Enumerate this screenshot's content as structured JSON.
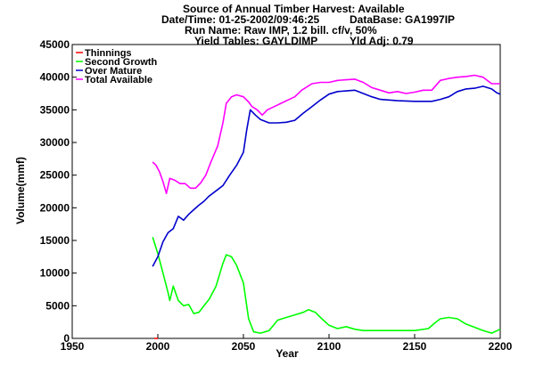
{
  "header": {
    "line1": "Source of Annual Timber Harvest: Available",
    "datetime": "Date/Time: 01-25-2002/09:46:25",
    "database": "DataBase: GA1997IP",
    "run_name": "Run Name: Raw IMP, 1.2 bill. cf/v, 50%",
    "yield_tables": "Yield Tables: GAYLDIMP",
    "yld_adj": "Yld Adj: 0.79"
  },
  "chart_data": {
    "type": "line",
    "xlabel": "Year",
    "ylabel": "Volume(mmf)",
    "xlim": [
      1950,
      2200
    ],
    "ylim": [
      0,
      45000
    ],
    "xticks": [
      1950,
      2000,
      2050,
      2100,
      2150,
      2200
    ],
    "yticks": [
      0,
      5000,
      10000,
      15000,
      20000,
      25000,
      30000,
      35000,
      40000,
      45000
    ],
    "grid": false,
    "legend_position": "top-left",
    "series": [
      {
        "name": "Thinnings",
        "color": "#ff0000",
        "points": [
          [
            1998,
            0
          ],
          [
            2000,
            0
          ]
        ]
      },
      {
        "name": "Second Growth",
        "color": "#00ff00",
        "points": [
          [
            1997,
            15500
          ],
          [
            2000,
            13000
          ],
          [
            2003,
            10000
          ],
          [
            2006,
            7000
          ],
          [
            2007,
            5800
          ],
          [
            2009,
            8000
          ],
          [
            2012,
            5800
          ],
          [
            2015,
            5000
          ],
          [
            2018,
            5200
          ],
          [
            2021,
            3800
          ],
          [
            2024,
            4000
          ],
          [
            2027,
            5000
          ],
          [
            2030,
            6000
          ],
          [
            2034,
            8000
          ],
          [
            2038,
            11500
          ],
          [
            2040,
            12800
          ],
          [
            2043,
            12500
          ],
          [
            2046,
            11200
          ],
          [
            2050,
            8500
          ],
          [
            2053,
            3000
          ],
          [
            2056,
            1000
          ],
          [
            2060,
            800
          ],
          [
            2065,
            1200
          ],
          [
            2070,
            2800
          ],
          [
            2075,
            3200
          ],
          [
            2080,
            3600
          ],
          [
            2085,
            4000
          ],
          [
            2088,
            4400
          ],
          [
            2092,
            4000
          ],
          [
            2095,
            3200
          ],
          [
            2100,
            2000
          ],
          [
            2105,
            1500
          ],
          [
            2110,
            1800
          ],
          [
            2115,
            1400
          ],
          [
            2120,
            1200
          ],
          [
            2130,
            1200
          ],
          [
            2140,
            1200
          ],
          [
            2150,
            1200
          ],
          [
            2158,
            1500
          ],
          [
            2162,
            2400
          ],
          [
            2165,
            3000
          ],
          [
            2170,
            3200
          ],
          [
            2175,
            3000
          ],
          [
            2180,
            2200
          ],
          [
            2185,
            1700
          ],
          [
            2190,
            1200
          ],
          [
            2195,
            800
          ],
          [
            2200,
            1400
          ]
        ]
      },
      {
        "name": "Over Mature",
        "color": "#0000cc",
        "points": [
          [
            1997,
            11000
          ],
          [
            2000,
            12500
          ],
          [
            2003,
            14800
          ],
          [
            2006,
            16200
          ],
          [
            2009,
            16800
          ],
          [
            2012,
            18700
          ],
          [
            2015,
            18100
          ],
          [
            2018,
            19000
          ],
          [
            2021,
            19700
          ],
          [
            2024,
            20400
          ],
          [
            2027,
            21000
          ],
          [
            2030,
            21800
          ],
          [
            2034,
            22600
          ],
          [
            2038,
            23400
          ],
          [
            2042,
            25000
          ],
          [
            2046,
            26500
          ],
          [
            2050,
            28500
          ],
          [
            2052,
            32000
          ],
          [
            2054,
            35000
          ],
          [
            2057,
            34200
          ],
          [
            2060,
            33500
          ],
          [
            2065,
            33000
          ],
          [
            2070,
            33000
          ],
          [
            2075,
            33100
          ],
          [
            2080,
            33400
          ],
          [
            2085,
            34500
          ],
          [
            2090,
            35500
          ],
          [
            2095,
            36500
          ],
          [
            2100,
            37400
          ],
          [
            2105,
            37800
          ],
          [
            2110,
            37900
          ],
          [
            2115,
            38000
          ],
          [
            2120,
            37500
          ],
          [
            2125,
            37000
          ],
          [
            2130,
            36600
          ],
          [
            2140,
            36400
          ],
          [
            2150,
            36300
          ],
          [
            2160,
            36300
          ],
          [
            2165,
            36600
          ],
          [
            2170,
            37000
          ],
          [
            2175,
            37800
          ],
          [
            2180,
            38200
          ],
          [
            2185,
            38300
          ],
          [
            2190,
            38600
          ],
          [
            2195,
            38200
          ],
          [
            2198,
            37600
          ],
          [
            2200,
            37400
          ]
        ]
      },
      {
        "name": "Total Available",
        "color": "#ff00ff",
        "points": [
          [
            1997,
            27000
          ],
          [
            1999,
            26500
          ],
          [
            2001,
            25500
          ],
          [
            2003,
            24000
          ],
          [
            2005,
            22200
          ],
          [
            2007,
            24500
          ],
          [
            2010,
            24200
          ],
          [
            2013,
            23700
          ],
          [
            2016,
            23700
          ],
          [
            2019,
            23000
          ],
          [
            2022,
            23000
          ],
          [
            2025,
            23800
          ],
          [
            2028,
            25000
          ],
          [
            2031,
            27000
          ],
          [
            2035,
            29500
          ],
          [
            2038,
            33000
          ],
          [
            2040,
            36000
          ],
          [
            2043,
            37000
          ],
          [
            2046,
            37300
          ],
          [
            2050,
            37000
          ],
          [
            2053,
            36200
          ],
          [
            2055,
            35500
          ],
          [
            2058,
            35000
          ],
          [
            2061,
            34200
          ],
          [
            2064,
            35000
          ],
          [
            2068,
            35500
          ],
          [
            2072,
            36000
          ],
          [
            2076,
            36500
          ],
          [
            2080,
            37000
          ],
          [
            2084,
            38000
          ],
          [
            2090,
            39000
          ],
          [
            2095,
            39200
          ],
          [
            2100,
            39200
          ],
          [
            2105,
            39500
          ],
          [
            2110,
            39600
          ],
          [
            2115,
            39700
          ],
          [
            2120,
            39200
          ],
          [
            2125,
            38400
          ],
          [
            2130,
            38000
          ],
          [
            2135,
            37600
          ],
          [
            2140,
            37800
          ],
          [
            2145,
            37500
          ],
          [
            2150,
            37700
          ],
          [
            2155,
            38000
          ],
          [
            2160,
            38000
          ],
          [
            2165,
            39500
          ],
          [
            2170,
            39800
          ],
          [
            2175,
            40000
          ],
          [
            2180,
            40100
          ],
          [
            2185,
            40300
          ],
          [
            2190,
            40000
          ],
          [
            2195,
            39000
          ],
          [
            2200,
            39000
          ]
        ]
      }
    ]
  }
}
